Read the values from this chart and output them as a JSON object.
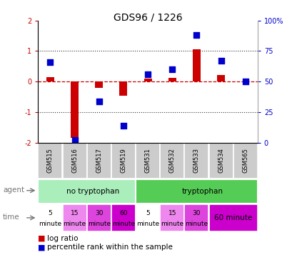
{
  "title": "GDS96 / 1226",
  "samples": [
    "GSM515",
    "GSM516",
    "GSM517",
    "GSM519",
    "GSM531",
    "GSM532",
    "GSM533",
    "GSM534",
    "GSM565"
  ],
  "log_ratio": [
    0.15,
    -1.85,
    -0.2,
    -0.45,
    0.1,
    0.12,
    1.05,
    0.22,
    0.0
  ],
  "percentile_pct": [
    66,
    2,
    34,
    14,
    56,
    60,
    88,
    67,
    50
  ],
  "ylim_left": [
    -2,
    2
  ],
  "ylim_right": [
    0,
    100
  ],
  "bar_color": "#cc0000",
  "dot_color": "#0000cc",
  "agent_no_tryp": "no tryptophan",
  "agent_tryp": "tryptophan",
  "agent_no_tryp_color": "#aaeebb",
  "agent_tryp_color": "#55cc55",
  "time_labels_top": [
    "5",
    "15",
    "30",
    "60",
    "5",
    "15",
    "30",
    "60 minute"
  ],
  "time_labels_bot": [
    "minute",
    "minute",
    "minute",
    "minute",
    "minute",
    "minute",
    "minute",
    ""
  ],
  "time_colors": [
    "#ffffff",
    "#ee88ee",
    "#dd44dd",
    "#cc00cc",
    "#ffffff",
    "#ee88ee",
    "#dd44dd",
    "#cc00cc"
  ],
  "gsm_bg": "#cccccc",
  "zero_line_color": "#cc0000",
  "dotted_line_color": "#333333",
  "right_axis_color": "#0000cc",
  "label_color": "#777777",
  "bg_color": "#ffffff"
}
